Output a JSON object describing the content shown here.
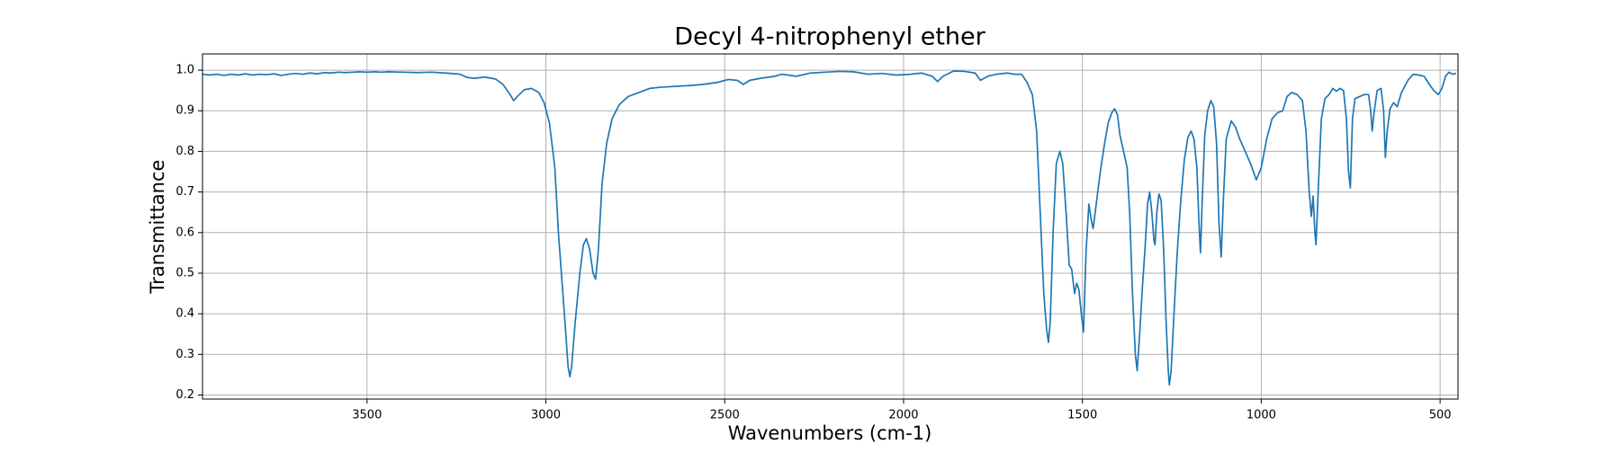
{
  "chart_data": {
    "type": "line",
    "title": "Decyl 4-nitrophenyl ether",
    "xlabel": "Wavenumbers (cm-1)",
    "ylabel": "Transmittance",
    "color": "#1f77b4",
    "grid": true,
    "xlim": [
      3960,
      450
    ],
    "ylim": [
      0.19,
      1.04
    ],
    "xticks": [
      3500,
      3000,
      2500,
      2000,
      1500,
      1000,
      500
    ],
    "yticks": [
      0.2,
      0.3,
      0.4,
      0.5,
      0.6,
      0.7,
      0.8,
      0.9,
      {
        "value": 1,
        "label": "1.0"
      }
    ],
    "x": [
      3960,
      3940,
      3920,
      3900,
      3880,
      3860,
      3840,
      3820,
      3800,
      3780,
      3760,
      3740,
      3720,
      3700,
      3680,
      3660,
      3640,
      3620,
      3600,
      3580,
      3560,
      3540,
      3520,
      3500,
      3480,
      3460,
      3440,
      3400,
      3360,
      3320,
      3280,
      3240,
      3220,
      3200,
      3170,
      3140,
      3120,
      3100,
      3090,
      3080,
      3060,
      3040,
      3020,
      3005,
      2990,
      2975,
      2965,
      2955,
      2945,
      2938,
      2933,
      2928,
      2918,
      2905,
      2895,
      2887,
      2878,
      2868,
      2861,
      2853,
      2843,
      2830,
      2815,
      2795,
      2770,
      2740,
      2710,
      2680,
      2640,
      2600,
      2560,
      2520,
      2490,
      2465,
      2448,
      2430,
      2400,
      2360,
      2340,
      2300,
      2260,
      2220,
      2180,
      2140,
      2100,
      2060,
      2020,
      1980,
      1950,
      1920,
      1905,
      1890,
      1860,
      1830,
      1800,
      1785,
      1765,
      1740,
      1710,
      1690,
      1670,
      1655,
      1640,
      1628,
      1618,
      1608,
      1600,
      1595,
      1590,
      1582,
      1573,
      1563,
      1555,
      1545,
      1537,
      1530,
      1522,
      1516,
      1510,
      1503,
      1497,
      1490,
      1482,
      1475,
      1470,
      1460,
      1450,
      1438,
      1428,
      1418,
      1410,
      1402,
      1395,
      1385,
      1375,
      1368,
      1360,
      1352,
      1347,
      1340,
      1332,
      1325,
      1318,
      1312,
      1306,
      1300,
      1297,
      1292,
      1286,
      1280,
      1273,
      1266,
      1260,
      1257,
      1252,
      1244,
      1235,
      1225,
      1215,
      1205,
      1196,
      1188,
      1180,
      1174,
      1170,
      1165,
      1158,
      1150,
      1141,
      1133,
      1125,
      1118,
      1112,
      1106,
      1098,
      1084,
      1072,
      1060,
      1045,
      1030,
      1014,
      1000,
      985,
      970,
      955,
      940,
      928,
      915,
      900,
      885,
      875,
      866,
      860,
      855,
      850,
      847,
      840,
      832,
      822,
      810,
      800,
      790,
      780,
      770,
      762,
      756,
      751,
      745,
      738,
      725,
      712,
      700,
      694,
      690,
      684,
      676,
      665,
      658,
      653,
      648,
      640,
      630,
      620,
      608,
      590,
      575,
      560,
      545,
      530,
      518,
      505,
      495,
      485,
      475,
      465,
      455
    ],
    "values": [
      0.99,
      0.988,
      0.99,
      0.987,
      0.99,
      0.988,
      0.991,
      0.988,
      0.99,
      0.989,
      0.991,
      0.987,
      0.99,
      0.992,
      0.99,
      0.993,
      0.991,
      0.994,
      0.993,
      0.995,
      0.994,
      0.995,
      0.996,
      0.995,
      0.996,
      0.995,
      0.996,
      0.995,
      0.994,
      0.995,
      0.993,
      0.99,
      0.982,
      0.98,
      0.983,
      0.978,
      0.965,
      0.94,
      0.925,
      0.935,
      0.952,
      0.955,
      0.945,
      0.92,
      0.87,
      0.76,
      0.6,
      0.48,
      0.36,
      0.27,
      0.245,
      0.27,
      0.38,
      0.5,
      0.57,
      0.585,
      0.56,
      0.5,
      0.485,
      0.56,
      0.72,
      0.82,
      0.88,
      0.915,
      0.935,
      0.945,
      0.955,
      0.958,
      0.96,
      0.962,
      0.965,
      0.97,
      0.977,
      0.975,
      0.965,
      0.975,
      0.98,
      0.985,
      0.99,
      0.985,
      0.993,
      0.995,
      0.997,
      0.996,
      0.99,
      0.992,
      0.988,
      0.99,
      0.993,
      0.985,
      0.972,
      0.985,
      0.998,
      0.997,
      0.993,
      0.975,
      0.985,
      0.99,
      0.993,
      0.99,
      0.99,
      0.97,
      0.94,
      0.85,
      0.65,
      0.45,
      0.36,
      0.33,
      0.38,
      0.6,
      0.77,
      0.8,
      0.77,
      0.64,
      0.52,
      0.51,
      0.45,
      0.475,
      0.46,
      0.4,
      0.355,
      0.55,
      0.67,
      0.63,
      0.61,
      0.68,
      0.75,
      0.82,
      0.87,
      0.895,
      0.905,
      0.89,
      0.84,
      0.8,
      0.76,
      0.65,
      0.45,
      0.3,
      0.26,
      0.35,
      0.47,
      0.56,
      0.67,
      0.7,
      0.65,
      0.58,
      0.57,
      0.65,
      0.695,
      0.68,
      0.56,
      0.38,
      0.26,
      0.225,
      0.26,
      0.4,
      0.55,
      0.68,
      0.78,
      0.835,
      0.85,
      0.83,
      0.76,
      0.62,
      0.55,
      0.68,
      0.84,
      0.9,
      0.925,
      0.91,
      0.82,
      0.62,
      0.54,
      0.68,
      0.83,
      0.875,
      0.86,
      0.83,
      0.8,
      0.77,
      0.73,
      0.76,
      0.83,
      0.88,
      0.895,
      0.9,
      0.935,
      0.945,
      0.94,
      0.925,
      0.85,
      0.7,
      0.64,
      0.69,
      0.6,
      0.57,
      0.72,
      0.88,
      0.93,
      0.94,
      0.955,
      0.948,
      0.955,
      0.95,
      0.88,
      0.75,
      0.71,
      0.88,
      0.93,
      0.935,
      0.94,
      0.94,
      0.9,
      0.85,
      0.9,
      0.95,
      0.955,
      0.9,
      0.785,
      0.85,
      0.905,
      0.92,
      0.91,
      0.945,
      0.975,
      0.99,
      0.988,
      0.985,
      0.965,
      0.95,
      0.94,
      0.955,
      0.985,
      0.995,
      0.99,
      0.992
    ]
  }
}
